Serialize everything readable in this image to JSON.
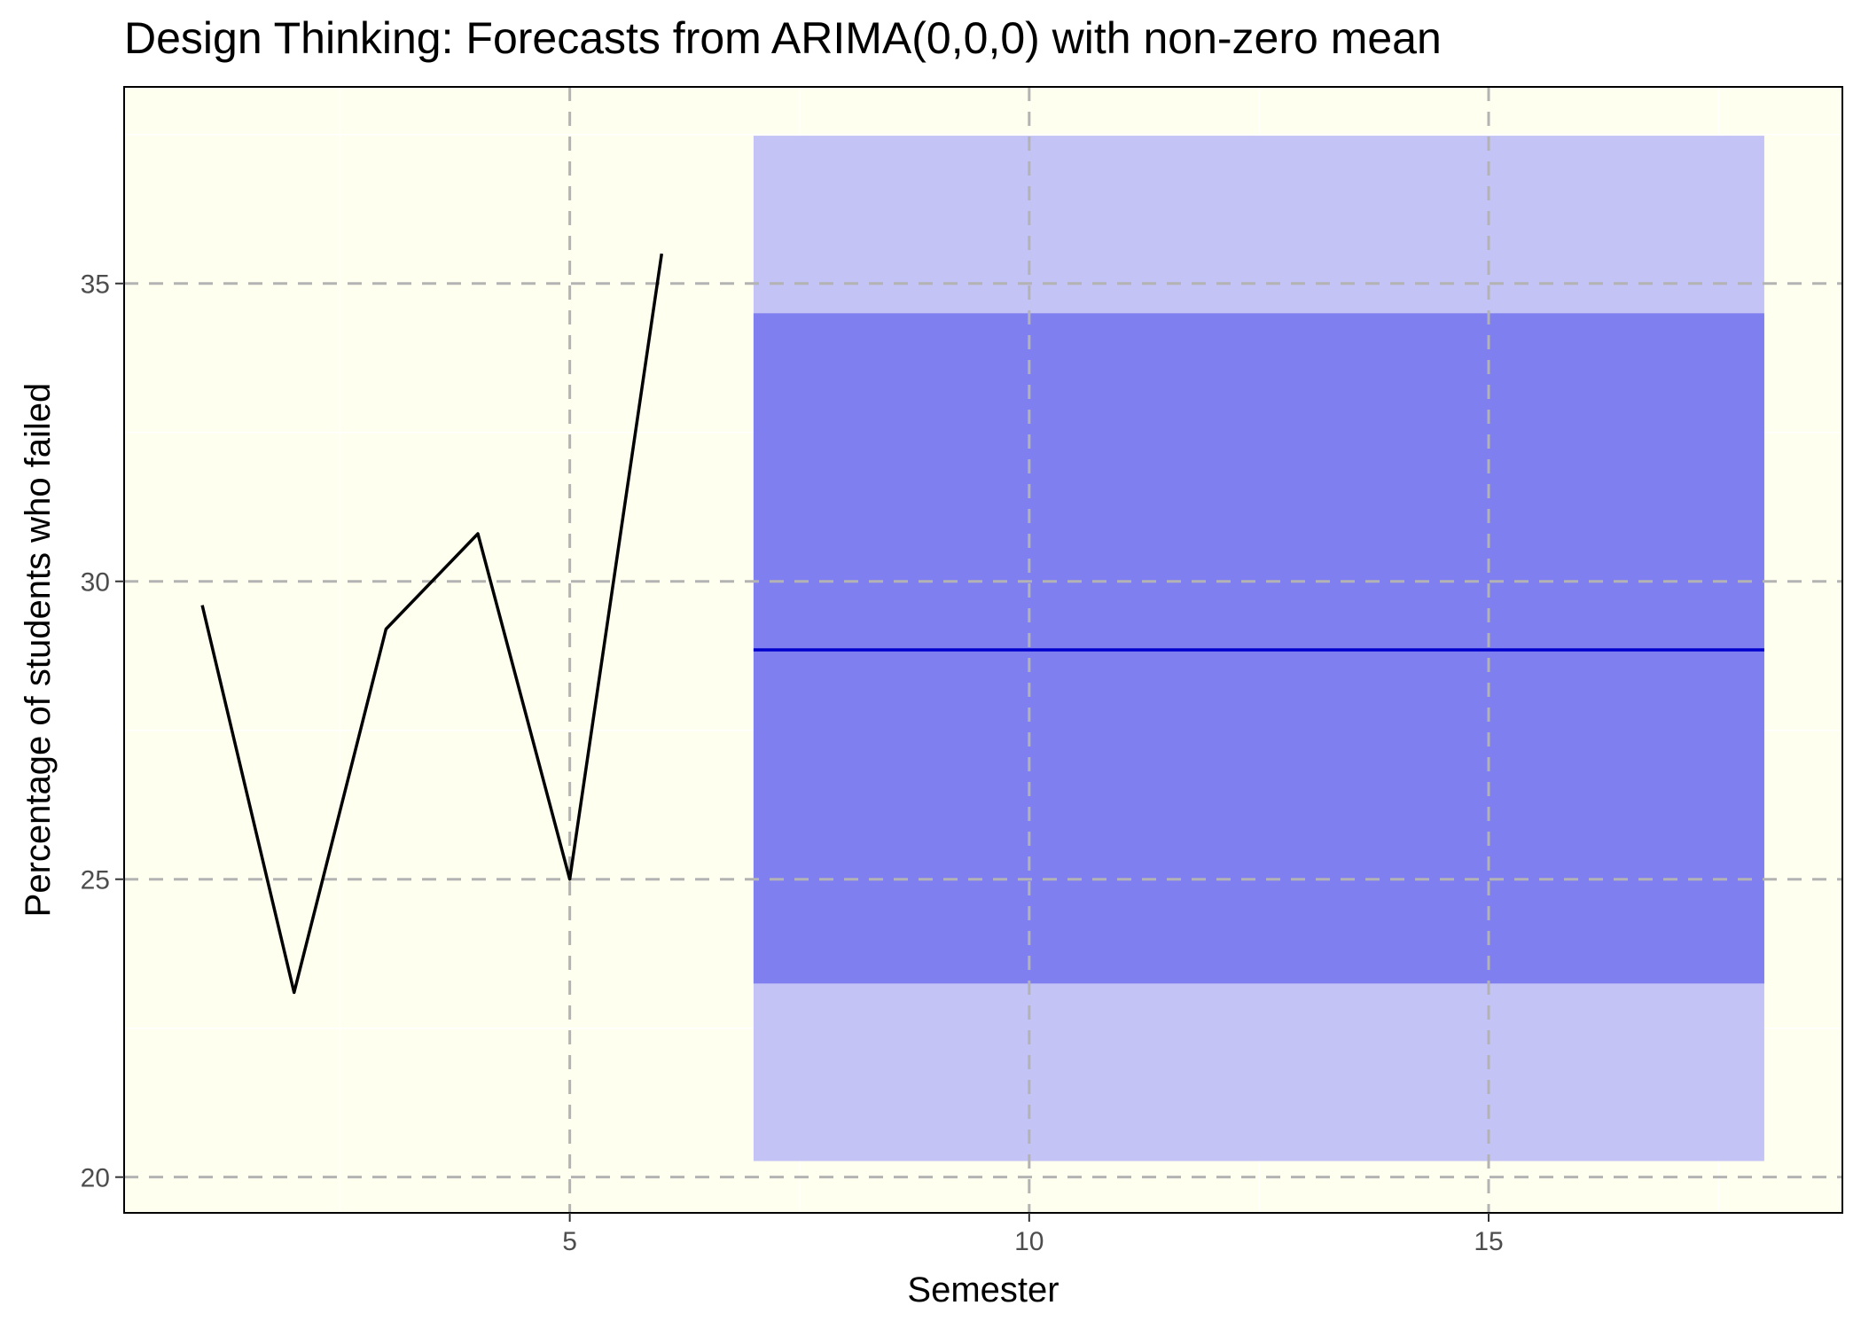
{
  "chart_data": {
    "type": "line",
    "title": "Design Thinking: Forecasts from ARIMA(0,0,0) with non-zero mean",
    "xlabel": "Semester",
    "ylabel": "Percentage of students who failed",
    "xlim": [
      0.15,
      18.85
    ],
    "ylim": [
      19.4,
      38.3
    ],
    "x_ticks": [
      5,
      10,
      15
    ],
    "x_tick_labels": [
      "5",
      "10",
      "15"
    ],
    "y_ticks": [
      20,
      25,
      30,
      35
    ],
    "y_tick_labels": [
      "20",
      "25",
      "30",
      "35"
    ],
    "grid": true,
    "legend": "none",
    "series": [
      {
        "x": [
          1,
          2,
          3,
          4,
          5,
          6
        ],
        "values": [
          29.6,
          23.1,
          29.2,
          30.8,
          25.0,
          35.5
        ]
      }
    ],
    "forecast": {
      "x_start": 7,
      "x_end": 18,
      "mean": 28.85,
      "lower_80": 23.25,
      "upper_80": 34.5,
      "lower_95": 20.27,
      "upper_95": 37.48
    },
    "colors": {
      "panel_background": "#fffff0",
      "series_line": "#000000",
      "forecast_line": "#0000cc",
      "band_80": "#7f7fef",
      "band_95": "#c3c3f5",
      "grid_major": "#b3b3b3",
      "grid_minor": "#ffffff"
    }
  }
}
